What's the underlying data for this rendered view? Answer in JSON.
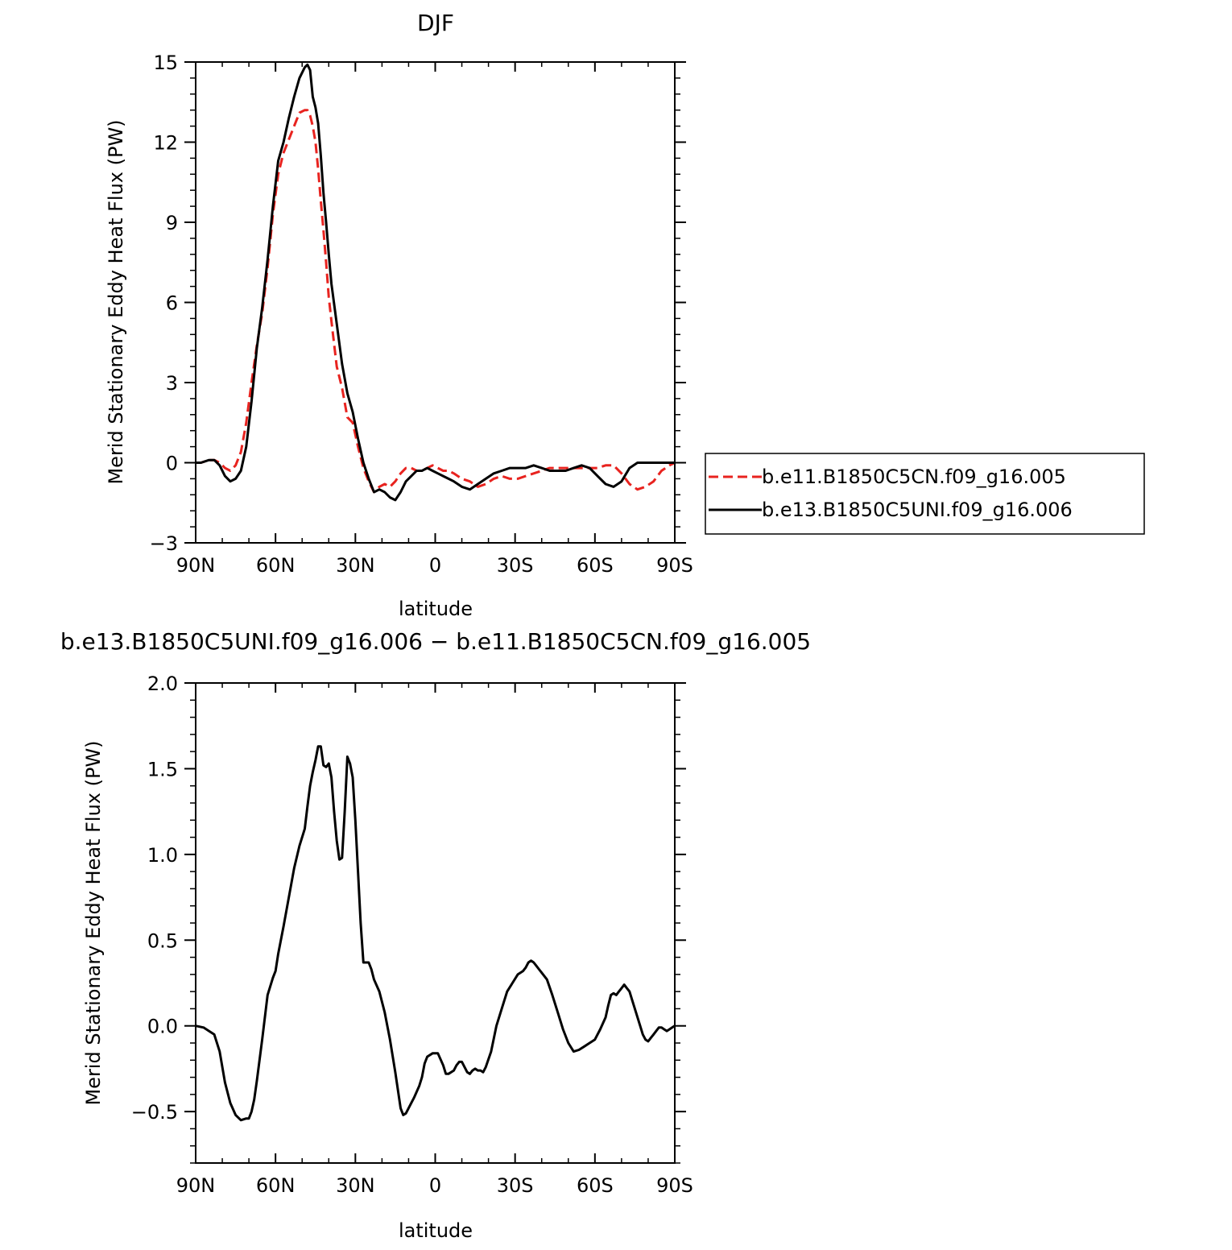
{
  "chart_data": [
    {
      "type": "line",
      "title": "DJF",
      "xlabel": "latitude",
      "ylabel": "Merid Stationary Eddy Heat Flux (PW)",
      "xlim": [
        90,
        -90
      ],
      "ylim": [
        -3,
        15
      ],
      "xticks": [
        90,
        60,
        30,
        0,
        -30,
        -60,
        -90
      ],
      "xtick_labels": [
        "90N",
        "60N",
        "30N",
        "0",
        "30S",
        "60S",
        "90S"
      ],
      "yticks": [
        -3,
        0,
        3,
        6,
        9,
        12,
        15
      ],
      "ytick_labels": [
        "−3",
        "0",
        "3",
        "6",
        "9",
        "12",
        "15"
      ],
      "grid": false,
      "legend_position": "right",
      "series": [
        {
          "name": "b.e11.B1850C5CN.f09_g16.005",
          "color": "#e8231f",
          "dash": "dashed",
          "x": [
            90,
            88,
            85,
            83,
            81,
            79,
            77,
            75,
            73,
            71,
            69,
            67,
            65,
            63,
            61,
            59,
            57,
            55,
            53,
            51,
            49,
            48,
            47,
            46,
            45,
            44,
            43,
            42,
            41,
            40,
            39,
            37,
            35,
            33,
            31,
            29,
            27,
            25,
            23,
            21,
            19,
            17,
            15,
            13,
            11,
            9,
            7,
            5,
            3,
            1,
            -1,
            -3,
            -5,
            -7,
            -10,
            -13,
            -16,
            -19,
            -22,
            -25,
            -28,
            -31,
            -34,
            -37,
            -40,
            -43,
            -46,
            -49,
            -52,
            -55,
            -58,
            -61,
            -64,
            -67,
            -70,
            -73,
            -76,
            -79,
            -82,
            -85,
            -88,
            -90
          ],
          "y": [
            0.0,
            0.0,
            0.1,
            0.1,
            0.0,
            -0.2,
            -0.3,
            -0.1,
            0.4,
            1.5,
            3.0,
            4.4,
            5.6,
            7.3,
            9.3,
            10.8,
            11.6,
            12.1,
            12.6,
            13.1,
            13.2,
            13.2,
            13.0,
            12.6,
            12.0,
            11.0,
            9.8,
            8.7,
            7.5,
            6.2,
            5.3,
            3.6,
            2.8,
            1.7,
            1.5,
            0.6,
            -0.2,
            -0.7,
            -1.1,
            -0.9,
            -0.8,
            -0.9,
            -0.7,
            -0.4,
            -0.2,
            -0.2,
            -0.3,
            -0.3,
            -0.2,
            -0.1,
            -0.2,
            -0.3,
            -0.3,
            -0.4,
            -0.6,
            -0.7,
            -0.9,
            -0.8,
            -0.6,
            -0.5,
            -0.6,
            -0.6,
            -0.5,
            -0.4,
            -0.3,
            -0.2,
            -0.2,
            -0.2,
            -0.2,
            -0.2,
            -0.2,
            -0.2,
            -0.1,
            -0.1,
            -0.4,
            -0.8,
            -1.0,
            -0.9,
            -0.7,
            -0.3,
            -0.1,
            0.0
          ]
        },
        {
          "name": "b.e13.B1850C5UNI.f09_g16.006",
          "color": "#000000",
          "dash": "solid",
          "x": [
            90,
            88,
            85,
            83,
            81,
            79,
            77,
            75,
            73,
            71,
            69,
            67,
            65,
            63,
            61,
            59,
            57,
            55,
            53,
            51,
            49,
            48,
            47,
            46,
            45,
            44,
            43,
            42,
            41,
            40,
            39,
            37,
            35,
            33,
            31,
            29,
            27,
            25,
            23,
            21,
            19,
            17,
            15,
            13,
            11,
            9,
            7,
            5,
            3,
            1,
            -1,
            -3,
            -5,
            -7,
            -10,
            -13,
            -16,
            -19,
            -22,
            -25,
            -28,
            -31,
            -34,
            -37,
            -40,
            -43,
            -46,
            -49,
            -52,
            -55,
            -58,
            -61,
            -64,
            -67,
            -70,
            -73,
            -76,
            -79,
            -82,
            -85,
            -88,
            -90
          ],
          "y": [
            0.0,
            0.0,
            0.1,
            0.1,
            -0.1,
            -0.5,
            -0.7,
            -0.6,
            -0.3,
            0.6,
            2.3,
            4.3,
            5.8,
            7.6,
            9.6,
            11.3,
            12.0,
            12.9,
            13.7,
            14.4,
            14.8,
            14.9,
            14.7,
            13.7,
            13.3,
            12.7,
            11.5,
            10.1,
            9.0,
            7.8,
            6.7,
            5.2,
            3.7,
            2.6,
            1.9,
            0.9,
            0.0,
            -0.6,
            -1.1,
            -1.0,
            -1.1,
            -1.3,
            -1.4,
            -1.1,
            -0.7,
            -0.5,
            -0.3,
            -0.3,
            -0.2,
            -0.3,
            -0.4,
            -0.5,
            -0.6,
            -0.7,
            -0.9,
            -1.0,
            -0.8,
            -0.6,
            -0.4,
            -0.3,
            -0.2,
            -0.2,
            -0.2,
            -0.1,
            -0.2,
            -0.3,
            -0.3,
            -0.3,
            -0.2,
            -0.1,
            -0.2,
            -0.5,
            -0.8,
            -0.9,
            -0.7,
            -0.2,
            0.0,
            0.0,
            0.0,
            0.0,
            0.0,
            0.0
          ]
        }
      ]
    },
    {
      "type": "line",
      "title": "b.e13.B1850C5UNI.f09_g16.006 − b.e11.B1850C5CN.f09_g16.005",
      "xlabel": "latitude",
      "ylabel": "Merid Stationary Eddy Heat Flux (PW)",
      "xlim": [
        90,
        -90
      ],
      "ylim": [
        -0.8,
        2.0
      ],
      "xticks": [
        90,
        60,
        30,
        0,
        -30,
        -60,
        -90
      ],
      "xtick_labels": [
        "90N",
        "60N",
        "30N",
        "0",
        "30S",
        "60S",
        "90S"
      ],
      "yticks": [
        -0.5,
        0.0,
        0.5,
        1.0,
        1.5,
        2.0
      ],
      "ytick_labels": [
        "−0.5",
        "0.0",
        "0.5",
        "1.0",
        "1.5",
        "2.0"
      ],
      "grid": false,
      "series": [
        {
          "color": "#000000",
          "dash": "solid",
          "x": [
            90,
            87,
            85,
            83,
            81,
            79,
            77,
            75,
            73,
            71,
            70,
            69,
            68,
            67,
            65,
            63,
            61,
            60,
            59,
            57,
            55,
            53,
            51,
            49,
            48,
            47,
            46,
            45,
            44,
            43,
            42,
            41,
            40,
            39,
            38,
            37,
            36,
            35,
            34,
            33,
            32,
            31,
            30,
            29,
            28,
            27,
            25,
            24,
            23,
            21,
            19,
            17,
            15,
            13,
            12,
            11,
            10,
            8,
            6,
            5,
            4,
            3,
            1,
            -1,
            -3,
            -4,
            -5,
            -7,
            -8,
            -9,
            -10,
            -11,
            -12,
            -13,
            -14,
            -15,
            -16,
            -17,
            -18,
            -19,
            -21,
            -23,
            -25,
            -27,
            -29,
            -31,
            -32,
            -33,
            -34,
            -35,
            -36,
            -37,
            -38,
            -39,
            -40,
            -42,
            -44,
            -46,
            -48,
            -50,
            -52,
            -54,
            -56,
            -58,
            -60,
            -62,
            -64,
            -65,
            -66,
            -67,
            -68,
            -69,
            -70,
            -71,
            -72,
            -73,
            -74,
            -75,
            -76,
            -77,
            -78,
            -79,
            -80,
            -81,
            -82,
            -83,
            -84,
            -85,
            -86,
            -87,
            -88,
            -89,
            -90
          ],
          "y": [
            0.0,
            -0.01,
            -0.03,
            -0.05,
            -0.15,
            -0.33,
            -0.45,
            -0.52,
            -0.55,
            -0.54,
            -0.54,
            -0.5,
            -0.43,
            -0.32,
            -0.08,
            0.18,
            0.28,
            0.32,
            0.42,
            0.58,
            0.75,
            0.92,
            1.05,
            1.15,
            1.28,
            1.4,
            1.48,
            1.55,
            1.63,
            1.63,
            1.52,
            1.51,
            1.53,
            1.45,
            1.25,
            1.08,
            0.97,
            0.98,
            1.25,
            1.57,
            1.53,
            1.45,
            1.2,
            0.9,
            0.6,
            0.37,
            0.37,
            0.33,
            0.27,
            0.2,
            0.08,
            -0.08,
            -0.27,
            -0.48,
            -0.52,
            -0.51,
            -0.48,
            -0.42,
            -0.35,
            -0.3,
            -0.22,
            -0.18,
            -0.16,
            -0.16,
            -0.23,
            -0.28,
            -0.28,
            -0.26,
            -0.23,
            -0.21,
            -0.21,
            -0.24,
            -0.27,
            -0.28,
            -0.26,
            -0.25,
            -0.26,
            -0.26,
            -0.27,
            -0.24,
            -0.15,
            0.0,
            0.1,
            0.2,
            0.25,
            0.3,
            0.31,
            0.32,
            0.34,
            0.37,
            0.38,
            0.37,
            0.35,
            0.33,
            0.31,
            0.27,
            0.18,
            0.08,
            -0.02,
            -0.1,
            -0.15,
            -0.14,
            -0.12,
            -0.1,
            -0.08,
            -0.02,
            0.05,
            0.12,
            0.18,
            0.19,
            0.18,
            0.2,
            0.22,
            0.24,
            0.22,
            0.2,
            0.15,
            0.1,
            0.05,
            0.0,
            -0.05,
            -0.08,
            -0.09,
            -0.07,
            -0.05,
            -0.03,
            -0.01,
            -0.01,
            -0.02,
            -0.03,
            -0.02,
            -0.01,
            0.0
          ]
        }
      ]
    }
  ]
}
